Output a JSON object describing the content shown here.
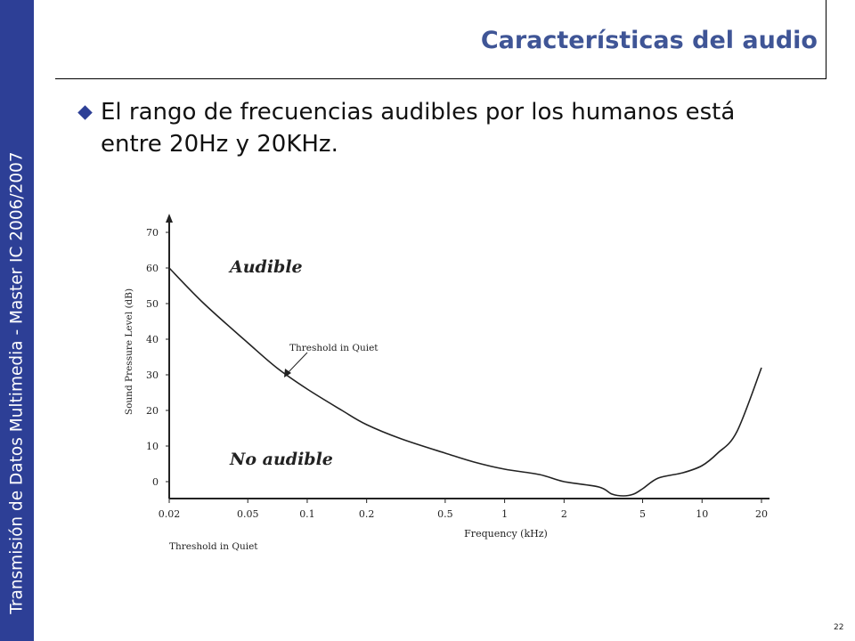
{
  "sidebar": {
    "text": "Transmisión de Datos Multimedia - Master IC 2006/2007"
  },
  "header": {
    "title": "Características del audio"
  },
  "bullet": {
    "text": "El rango de frecuencias audibles por los humanos está entre 20Hz y 20KHz."
  },
  "page_number": "22",
  "colors": {
    "sidebar": "#2d3f96",
    "title": "#3f5596"
  },
  "chart_data": {
    "type": "line",
    "title": "",
    "caption": "Threshold in Quiet",
    "xlabel": "Frequency (kHz)",
    "ylabel": "Sound Pressure Level (dB)",
    "x_scale": "log",
    "xlim": [
      0.02,
      20
    ],
    "ylim": [
      -5,
      70
    ],
    "x_ticks": [
      0.02,
      0.05,
      0.1,
      0.2,
      0.5,
      1,
      2,
      5,
      10,
      20
    ],
    "x_tick_labels": [
      "0.02",
      "0.05",
      "0.1",
      "0.2",
      "0.5",
      "1",
      "2",
      "5",
      "10",
      "20"
    ],
    "y_ticks": [
      0,
      10,
      20,
      30,
      40,
      50,
      60,
      70
    ],
    "y_tick_labels": [
      "0",
      "10",
      "20",
      "30",
      "40",
      "50",
      "60",
      "70"
    ],
    "series": [
      {
        "x": [
          0.02,
          0.03,
          0.05,
          0.07,
          0.1,
          0.15,
          0.2,
          0.3,
          0.5,
          0.7,
          1,
          1.5,
          2,
          3,
          3.5,
          4,
          4.5,
          5,
          6,
          8,
          10,
          12,
          15,
          20
        ],
        "y": [
          60,
          50,
          39,
          32,
          26,
          20,
          16,
          12,
          8,
          5.5,
          3.5,
          2,
          0,
          -1.5,
          -3.5,
          -4,
          -3.5,
          -2,
          1,
          2.5,
          4.5,
          8,
          14,
          32
        ]
      }
    ],
    "annotations": {
      "curve_label": "Threshold in Quiet",
      "audible": "Audible",
      "not_audible": "No audible"
    }
  }
}
